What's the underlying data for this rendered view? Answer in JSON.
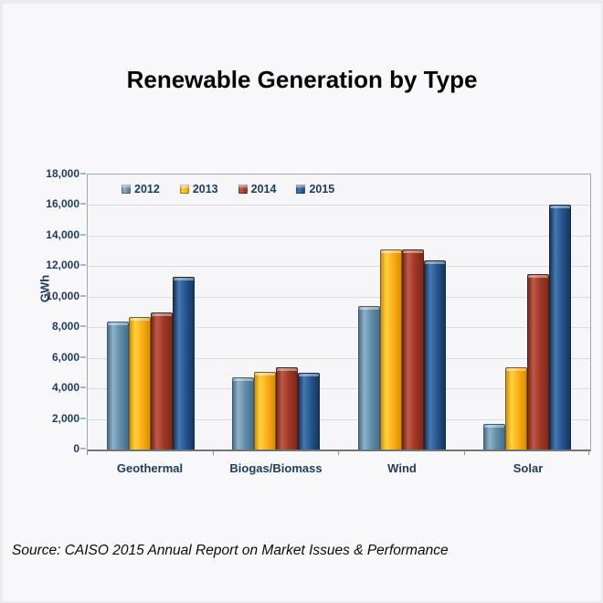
{
  "title": "Renewable Generation by Type",
  "source": "Source: CAISO 2015 Annual Report on Market Issues & Performance",
  "chart_data": {
    "type": "bar",
    "title": "Renewable Generation by Type",
    "xlabel": "",
    "ylabel": "GWh",
    "ylim": [
      0,
      18000
    ],
    "ytick_step": 2000,
    "ytick_labels": [
      "0",
      "2,000",
      "4,000",
      "6,000",
      "8,000",
      "10,000",
      "12,000",
      "14,000",
      "16,000",
      "18,000"
    ],
    "grid": true,
    "legend_position": "top-left-inside",
    "categories": [
      "Geothermal",
      "Biogas/Biomass",
      "Wind",
      "Solar"
    ],
    "series": [
      {
        "name": "2012",
        "values": [
          8400,
          4700,
          9400,
          1700
        ],
        "color": "#628CA7",
        "color_light": "#8FB3C7",
        "color_dark": "#47708E",
        "border": "#3A5C76"
      },
      {
        "name": "2013",
        "values": [
          8700,
          5100,
          13100,
          5400
        ],
        "color": "#FCAF17",
        "color_light": "#FFD23F",
        "color_dark": "#D88F00",
        "border": "#8A5C00"
      },
      {
        "name": "2014",
        "values": [
          9000,
          5400,
          13100,
          11500
        ],
        "color": "#A03826",
        "color_light": "#C25847",
        "color_dark": "#7A2A1C",
        "border": "#571E12"
      },
      {
        "name": "2015",
        "values": [
          11300,
          5000,
          12400,
          16000
        ],
        "color": "#27568C",
        "color_light": "#4379B2",
        "color_dark": "#16365C",
        "border": "#102A47"
      }
    ]
  },
  "colors": {
    "page_background": "#F8F7F9",
    "plot_background": "#F6F5F7",
    "gridline": "#DCDCDC",
    "plot_border": "#A8A8A8",
    "axis_line": "#737373",
    "tick_mark": "#9FB9DC",
    "chart_text": "#1F3A5F",
    "title_text": "#050505"
  }
}
